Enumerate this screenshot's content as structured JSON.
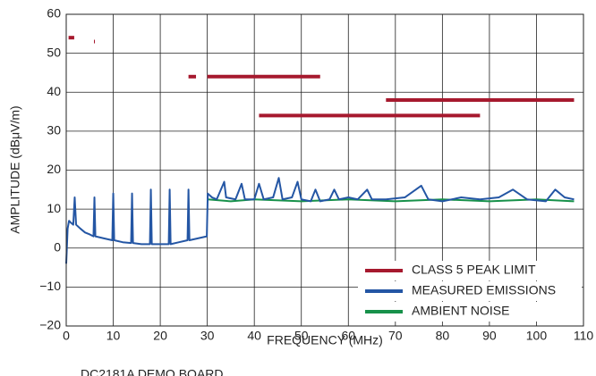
{
  "chart_data": {
    "type": "line",
    "xlabel": "FREQUENCY (MHz)",
    "ylabel": "AMPLITUDE (dBμV/m)",
    "note": "DC2181A DEMO BOARD",
    "xlim": [
      0,
      110
    ],
    "xticks": [
      0,
      10,
      20,
      30,
      40,
      50,
      60,
      70,
      80,
      90,
      100,
      110
    ],
    "ylim": [
      -20,
      60
    ],
    "yticks": [
      {
        "value": -20,
        "label": "−20"
      },
      {
        "value": -10,
        "label": "−10"
      },
      0,
      10,
      20,
      30,
      40,
      50,
      60
    ],
    "grid": true,
    "legend": "lower right",
    "series": [
      {
        "name": "CLASS 5 PEAK LIMIT",
        "color": "#a6192e",
        "segments": [
          {
            "x": [
              0.5,
              1.7
            ],
            "y": 54
          },
          {
            "x": [
              5.9,
              6.1
            ],
            "y": 53
          },
          {
            "x": [
              26,
              27.6
            ],
            "y": 44
          },
          {
            "x": [
              30,
              54
            ],
            "y": 44
          },
          {
            "x": [
              68,
              108
            ],
            "y": 38
          },
          {
            "x": [
              41,
              88
            ],
            "y": 34
          }
        ]
      },
      {
        "name": "MEASURED EMISSIONS",
        "color": "#2456a4",
        "x": [
          0,
          0.3,
          0.6,
          1,
          1.5,
          1.8,
          2.1,
          3,
          4,
          5,
          5.8,
          6,
          6.2,
          8,
          9.8,
          10,
          10.2,
          12,
          13.8,
          14,
          14.2,
          16,
          17.8,
          18,
          18.2,
          20,
          21.8,
          22,
          22.2,
          24,
          25.8,
          26,
          26.2,
          28,
          29.9,
          30.1,
          31,
          32,
          33.6,
          34,
          36,
          37.3,
          38,
          40,
          41,
          42,
          44,
          45.2,
          46,
          48,
          49.2,
          50,
          52,
          53,
          54,
          56,
          57,
          58,
          60,
          62,
          64,
          65,
          68,
          72,
          75.5,
          77,
          80,
          84,
          88,
          92,
          95,
          98,
          102,
          104,
          106,
          108
        ],
        "values": [
          -4,
          5,
          7,
          6.5,
          6,
          13,
          6,
          5,
          4,
          3.5,
          3,
          13,
          3,
          2.5,
          2,
          14,
          2,
          1.5,
          1.3,
          14,
          1.3,
          1,
          1,
          15,
          1,
          1,
          1,
          15,
          1,
          1.5,
          2,
          15,
          2,
          2.5,
          3,
          14,
          13,
          12.5,
          17,
          13,
          12.5,
          16.5,
          12.5,
          12.5,
          16.5,
          12.5,
          13,
          18,
          12.5,
          13,
          17,
          12.5,
          12,
          15,
          12,
          12.5,
          15,
          12.5,
          13,
          12.5,
          15,
          12.5,
          12.5,
          13,
          16,
          12.5,
          12,
          13,
          12.5,
          13,
          15,
          12.5,
          12,
          15,
          13,
          12.5
        ]
      },
      {
        "name": "AMBIENT NOISE",
        "color": "#17914a",
        "x": [
          30.1,
          35,
          40,
          50,
          60,
          70,
          80,
          90,
          100,
          108
        ],
        "values": [
          12.5,
          12,
          12.5,
          12,
          12.5,
          12,
          12.5,
          12,
          12.5,
          12
        ]
      }
    ]
  }
}
